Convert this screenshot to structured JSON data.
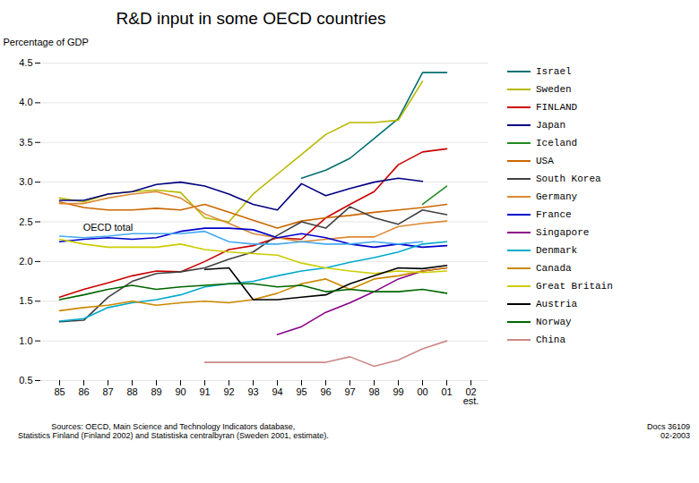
{
  "chart_data": {
    "type": "line",
    "title": "R&D input in some OECD countries",
    "ylabel": "Percentage of GDP",
    "annotations": [
      "OECD total",
      "est."
    ],
    "source": "Sources: OECD, Main Science and Technology Indicators database,\nStatistics Finland (Finland 2002) and Statistiska centralbyran (Sweden 2001, estimate).",
    "note": "Docs 36109\n02-2003",
    "categories": [
      "85",
      "86",
      "87",
      "88",
      "89",
      "90",
      "91",
      "92",
      "93",
      "94",
      "95",
      "96",
      "97",
      "98",
      "99",
      "00",
      "01",
      "02"
    ],
    "ylim": [
      0.5,
      4.5
    ],
    "yticks": [
      0.5,
      {
        "value": 1.0,
        "label": "1.0"
      },
      1.5,
      {
        "value": 2.0,
        "label": "2.0"
      },
      2.5,
      {
        "value": 3.0,
        "label": "3.0"
      },
      3.5,
      {
        "value": 4.0,
        "label": "4.0"
      },
      4.5
    ],
    "grid": true,
    "legend": "right",
    "series": [
      {
        "name": "Israel",
        "color": "#007070",
        "values": [
          null,
          null,
          null,
          null,
          null,
          null,
          null,
          null,
          null,
          null,
          3.05,
          3.15,
          3.3,
          3.55,
          3.8,
          4.38,
          4.38,
          null
        ]
      },
      {
        "name": "Sweden",
        "color": "#b8b800",
        "values": [
          2.8,
          2.75,
          2.85,
          2.88,
          2.9,
          2.87,
          2.55,
          2.5,
          2.85,
          3.1,
          3.35,
          3.6,
          3.75,
          3.75,
          3.78,
          4.27,
          null,
          null
        ]
      },
      {
        "name": "FINLAND",
        "color": "#cc0000",
        "values": [
          1.55,
          1.65,
          1.73,
          1.82,
          1.88,
          1.87,
          2.0,
          2.15,
          2.2,
          2.3,
          2.28,
          2.55,
          2.72,
          2.88,
          3.22,
          3.38,
          3.42,
          null
        ]
      },
      {
        "name": "Japan",
        "color": "#000080",
        "values": [
          2.77,
          2.77,
          2.85,
          2.88,
          2.97,
          3.0,
          2.95,
          2.85,
          2.72,
          2.65,
          2.98,
          2.83,
          2.92,
          3.0,
          3.05,
          3.01,
          null,
          null
        ]
      },
      {
        "name": "Iceland",
        "color": "#228B22",
        "values": [
          null,
          null,
          null,
          null,
          null,
          null,
          null,
          null,
          null,
          null,
          null,
          null,
          null,
          null,
          null,
          2.72,
          2.95,
          null
        ]
      },
      {
        "name": "USA",
        "color": "#cc6600",
        "values": [
          2.75,
          2.68,
          2.65,
          2.65,
          2.67,
          2.65,
          2.72,
          2.62,
          2.52,
          2.42,
          2.51,
          2.55,
          2.58,
          2.62,
          2.65,
          2.68,
          2.72,
          null
        ]
      },
      {
        "name": "South Korea",
        "color": "#404040",
        "values": [
          1.24,
          1.26,
          1.55,
          1.75,
          1.85,
          1.87,
          1.92,
          2.03,
          2.12,
          2.33,
          2.5,
          2.42,
          2.69,
          2.55,
          2.47,
          2.65,
          2.59,
          null
        ]
      },
      {
        "name": "Germany",
        "color": "#dd8833",
        "values": [
          2.73,
          2.73,
          2.8,
          2.85,
          2.88,
          2.8,
          2.6,
          2.48,
          2.35,
          2.3,
          2.25,
          2.28,
          2.31,
          2.31,
          2.44,
          2.48,
          2.51,
          null
        ]
      },
      {
        "name": "France",
        "color": "#0000cc",
        "values": [
          2.25,
          2.28,
          2.3,
          2.28,
          2.3,
          2.38,
          2.42,
          2.42,
          2.4,
          2.3,
          2.35,
          2.3,
          2.22,
          2.18,
          2.22,
          2.18,
          2.2,
          null
        ]
      },
      {
        "name": "Singapore",
        "color": "#880088",
        "values": [
          null,
          null,
          null,
          null,
          null,
          null,
          null,
          null,
          null,
          1.08,
          1.18,
          1.36,
          1.48,
          1.62,
          1.78,
          1.88,
          1.92,
          null
        ]
      },
      {
        "name": "Denmark",
        "color": "#00aacc",
        "values": [
          1.25,
          1.28,
          1.42,
          1.48,
          1.52,
          1.58,
          1.68,
          1.72,
          1.75,
          1.82,
          1.88,
          1.92,
          1.99,
          2.05,
          2.12,
          2.22,
          2.25,
          null
        ]
      },
      {
        "name": "Canada",
        "color": "#cc8800",
        "values": [
          1.38,
          1.42,
          1.45,
          1.5,
          1.45,
          1.48,
          1.5,
          1.48,
          1.52,
          1.6,
          1.72,
          1.78,
          1.65,
          1.78,
          1.82,
          1.88,
          1.92,
          null
        ]
      },
      {
        "name": "Great Britain",
        "color": "#cccc00",
        "values": [
          2.28,
          2.22,
          2.18,
          2.18,
          2.18,
          2.22,
          2.15,
          2.12,
          2.1,
          2.08,
          1.98,
          1.92,
          1.88,
          1.85,
          1.88,
          1.86,
          1.88,
          null
        ]
      },
      {
        "name": "Austria",
        "color": "#000000",
        "values": [
          null,
          null,
          null,
          null,
          null,
          null,
          1.9,
          1.92,
          1.52,
          1.52,
          1.55,
          1.58,
          1.72,
          1.82,
          1.92,
          1.91,
          1.95,
          null
        ]
      },
      {
        "name": "Norway",
        "color": "#006600",
        "values": [
          1.52,
          1.58,
          1.65,
          1.7,
          1.65,
          1.68,
          1.7,
          1.72,
          1.72,
          1.68,
          1.7,
          1.62,
          1.65,
          1.62,
          1.62,
          1.65,
          1.6,
          null
        ]
      },
      {
        "name": "China",
        "color": "#cc8888",
        "values": [
          null,
          null,
          null,
          null,
          null,
          null,
          0.73,
          0.73,
          0.73,
          0.73,
          0.73,
          0.73,
          0.8,
          0.68,
          0.76,
          0.9,
          1.0,
          null
        ]
      },
      {
        "name": "OECD total",
        "color": "#44aaee",
        "values": [
          2.32,
          2.3,
          2.32,
          2.35,
          2.35,
          2.35,
          2.38,
          2.25,
          2.22,
          2.22,
          2.25,
          2.22,
          2.22,
          2.25,
          2.22,
          2.25,
          null,
          null
        ]
      }
    ]
  }
}
